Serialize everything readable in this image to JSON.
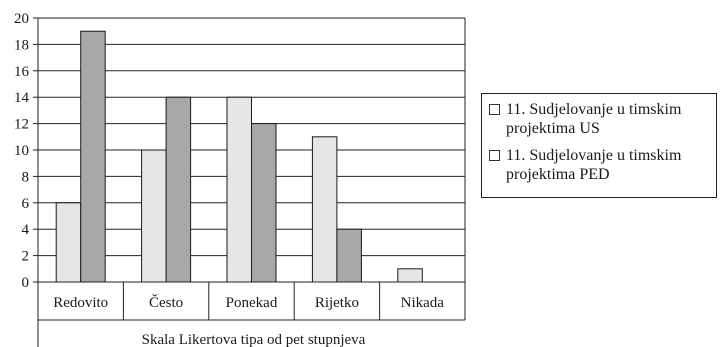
{
  "chart_data": {
    "type": "bar",
    "title": "",
    "xlabel": "Skala Likertova tipa od pet stupnjeva",
    "ylabel": "",
    "ylim": [
      0,
      20
    ],
    "ytick_step": 2,
    "yticks": [
      "0",
      "2",
      "4",
      "6",
      "8",
      "10",
      "12",
      "14",
      "16",
      "18",
      "20"
    ],
    "grid": true,
    "legend_position": "right",
    "categories": [
      "Redovito",
      "Često",
      "Ponekad",
      "Rijetko",
      "Nikada"
    ],
    "series": [
      {
        "name": "11. Sudjelovanje u timskim projektima US",
        "values": [
          6,
          10,
          14,
          11,
          1
        ],
        "color": "#e6e6e6"
      },
      {
        "name": "11. Sudjelovanje u timskim projektima PED",
        "values": [
          19,
          14,
          12,
          4,
          0
        ],
        "color": "#a8a8a8"
      }
    ]
  }
}
